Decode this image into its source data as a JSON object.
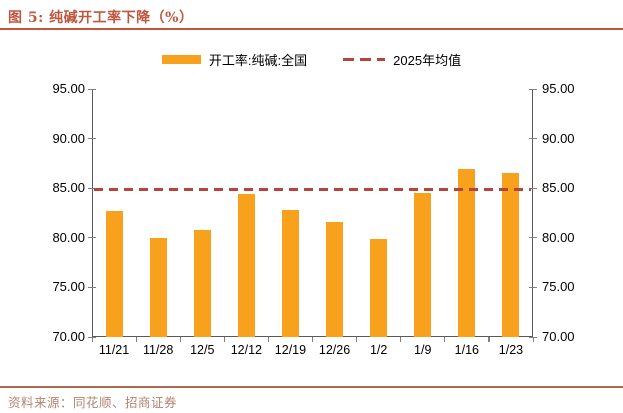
{
  "figure": {
    "title": "图 5: 纯碱开工率下降（%）"
  },
  "legend": {
    "bar_label": "开工率:纯碱:全国",
    "line_label": "2025年均值"
  },
  "footer": {
    "source": "资料来源：同花顺、招商证券"
  },
  "colors": {
    "bar": "#F8A11D",
    "mean_line": "#B5453C",
    "title_text": "#BE5640",
    "title_rule": "#C0563C",
    "footer_rule": "#A96B52",
    "footer_text": "#B28472",
    "axis": "#595959",
    "tick": "#7f7f7f"
  },
  "chart_data": {
    "type": "bar",
    "title": "纯碱开工率下降（%）",
    "categories": [
      "11/21",
      "11/28",
      "12/5",
      "12/12",
      "12/19",
      "12/26",
      "1/2",
      "1/9",
      "1/16",
      "1/23"
    ],
    "series": [
      {
        "name": "开工率:纯碱:全国",
        "type": "bar",
        "values": [
          82.7,
          80.0,
          80.8,
          84.4,
          82.8,
          81.6,
          79.9,
          84.5,
          86.9,
          86.5
        ]
      },
      {
        "name": "2025年均值",
        "type": "dashed-mean-line",
        "value": 84.9
      }
    ],
    "ylim": [
      70,
      95
    ],
    "ytick_step": 5,
    "ytick_labels": [
      "70.00",
      "75.00",
      "80.00",
      "85.00",
      "90.00",
      "95.00"
    ],
    "grid": false,
    "legend_position": "top",
    "xlabel": "",
    "ylabel": ""
  }
}
